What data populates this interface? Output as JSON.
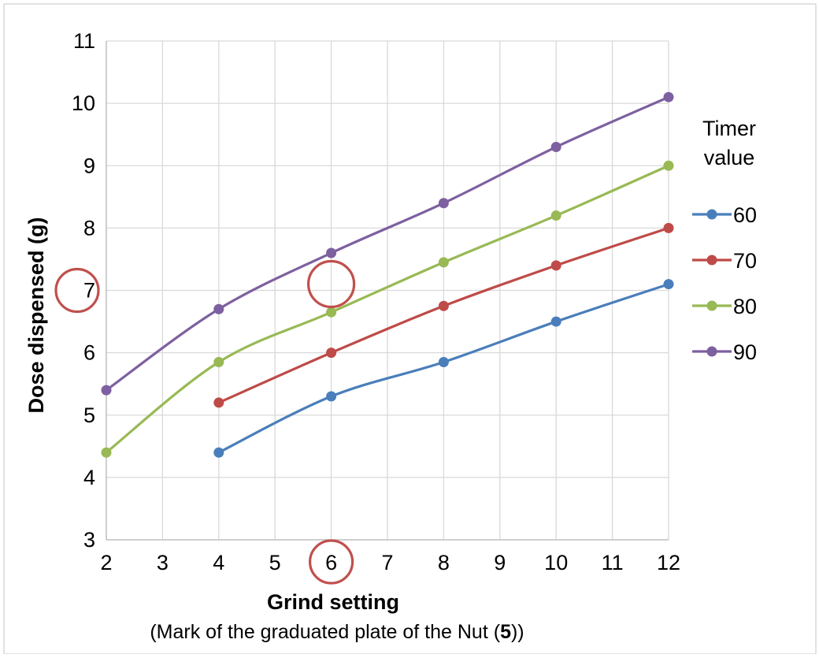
{
  "chart_data": {
    "type": "line",
    "title": "",
    "xlabel": "Grind setting",
    "xlabel_note_prefix": "(Mark of the graduated plate of the Nut (",
    "xlabel_note_bold": "5",
    "xlabel_note_suffix": "))",
    "ylabel": "Dose dispensed (g)",
    "xlim": [
      2,
      12
    ],
    "ylim": [
      3,
      11
    ],
    "x_ticks": [
      2,
      3,
      4,
      5,
      6,
      7,
      8,
      9,
      10,
      11,
      12
    ],
    "y_ticks": [
      3,
      4,
      5,
      6,
      7,
      8,
      9,
      10,
      11
    ],
    "grid": true,
    "smooth": true,
    "legend": {
      "title_line1": "Timer",
      "title_line2": "value",
      "placement": "right"
    },
    "series": [
      {
        "name": "60",
        "color": "#4a7ebb",
        "points": [
          [
            4,
            4.4
          ],
          [
            6,
            5.3
          ],
          [
            8,
            5.85
          ],
          [
            10,
            6.5
          ],
          [
            12,
            7.1
          ]
        ]
      },
      {
        "name": "70",
        "color": "#be4b48",
        "points": [
          [
            4,
            5.2
          ],
          [
            6,
            6.0
          ],
          [
            8,
            6.75
          ],
          [
            10,
            7.4
          ],
          [
            12,
            8.0
          ]
        ]
      },
      {
        "name": "80",
        "color": "#98b954",
        "points": [
          [
            2,
            4.4
          ],
          [
            4,
            5.85
          ],
          [
            6,
            6.65
          ],
          [
            8,
            7.45
          ],
          [
            10,
            8.2
          ],
          [
            12,
            9.0
          ]
        ]
      },
      {
        "name": "90",
        "color": "#7d60a0",
        "points": [
          [
            2,
            5.4
          ],
          [
            4,
            6.7
          ],
          [
            6,
            7.6
          ],
          [
            8,
            8.4
          ],
          [
            10,
            9.3
          ],
          [
            12,
            10.1
          ]
        ]
      }
    ],
    "annotations": [
      {
        "shape": "circle",
        "target": "y-tick",
        "value": 7,
        "color": "#c0504d"
      },
      {
        "shape": "circle",
        "target": "x-tick",
        "value": 6,
        "color": "#c0504d"
      },
      {
        "shape": "circle",
        "target": "point",
        "x": 6,
        "y": 7,
        "color": "#c0504d"
      }
    ]
  }
}
